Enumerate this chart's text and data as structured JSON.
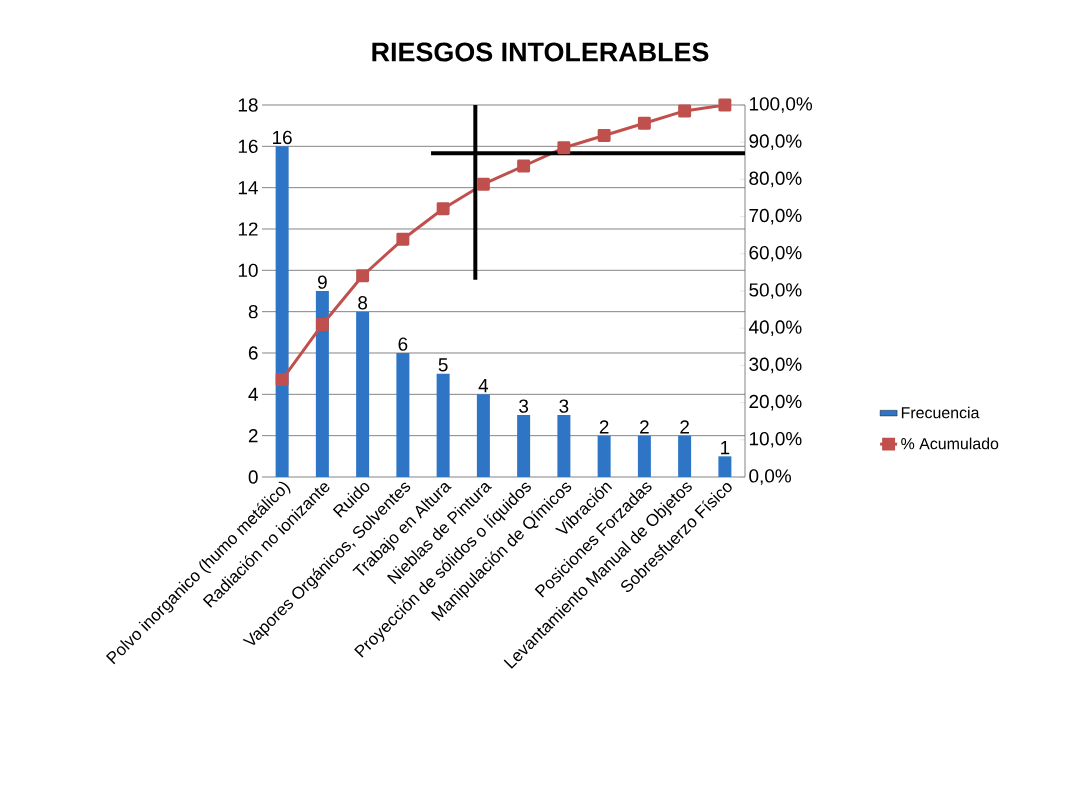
{
  "chart_data": {
    "type": "bar",
    "title": "RIESGOS   INTOLERABLES",
    "categories": [
      "Polvo inorganico (humo metálico)",
      "Radiación no ionizante",
      "Ruido",
      "Vapores Orgánicos, Solventes",
      "Trabajo en Altura",
      "Nieblas de Pintura",
      "Proyección de sólidos o líquidos",
      "Manipulación de Qímicos",
      "Vibración",
      "Posiciones Forzadas",
      "Levantamiento Manual de Objetos",
      "Sobresfuerzo Físico"
    ],
    "series": [
      {
        "name": "Frecuencia",
        "color": "#2e75c6",
        "values": [
          16,
          9,
          8,
          6,
          5,
          4,
          3,
          3,
          2,
          2,
          2,
          1
        ],
        "value_labels": [
          "16",
          "9",
          "8",
          "6",
          "5",
          "4",
          "3",
          "3",
          "2",
          "2",
          "2",
          "1"
        ]
      },
      {
        "name": "% Acumulado",
        "type": "line",
        "axis": "y2",
        "color": "#c0504d",
        "values": [
          26.2,
          41.0,
          54.1,
          63.9,
          72.1,
          78.7,
          83.6,
          88.5,
          91.8,
          95.1,
          98.4,
          100
        ]
      }
    ],
    "marker": "square",
    "line_style": "solid",
    "ylim": [
      0,
      18
    ],
    "yticks": [
      0,
      2,
      4,
      6,
      8,
      10,
      12,
      14,
      16,
      18
    ],
    "y2lim": [
      0,
      100
    ],
    "y2ticks": [
      {
        "value": 0,
        "label": "0,0%"
      },
      {
        "value": 10,
        "label": "10,0%"
      },
      {
        "value": 20,
        "label": "20,0%"
      },
      {
        "value": 30,
        "label": "30,0%"
      },
      {
        "value": 40,
        "label": "40,0%"
      },
      {
        "value": 50,
        "label": "50,0%"
      },
      {
        "value": 60,
        "label": "60,0%"
      },
      {
        "value": 70,
        "label": "70,0%"
      },
      {
        "value": 80,
        "label": "80,0%"
      },
      {
        "value": 90,
        "label": "90,0%"
      },
      {
        "value": 100,
        "label": "100,0%"
      }
    ],
    "grid": "y",
    "legend": "right",
    "ref_lines": [
      {
        "axis": "y2",
        "value": 87,
        "color": "#000000"
      },
      {
        "axis": "x",
        "value": "Nieblas de Pintura",
        "color": "#000000"
      }
    ]
  }
}
